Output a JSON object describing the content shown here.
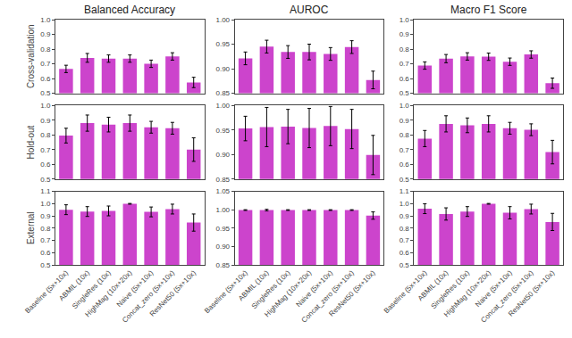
{
  "chart_data": [
    {
      "type": "bar",
      "title": "Balanced Accuracy",
      "ylabel": "Cross-validation",
      "categories": [
        "Baseline (5x+10x)",
        "ABMIL (10x)",
        "SingleRes (10x)",
        "HighMag (10x+20x)",
        "Naive (5x+10x)",
        "Concat_zero (5x+10x)",
        "ResNet50 (5x+10x)"
      ],
      "values": [
        0.665,
        0.74,
        0.735,
        0.735,
        0.7,
        0.75,
        0.573
      ],
      "errors": [
        0.025,
        0.03,
        0.025,
        0.025,
        0.025,
        0.025,
        0.035
      ],
      "color": "#CC44CC",
      "ylim": [
        0.5,
        1.0
      ],
      "yticks": [
        0.5,
        0.6,
        0.7,
        0.8,
        0.9,
        {
          "value": 1.0,
          "label": "1.0"
        }
      ],
      "grid": false,
      "tick_labels": "y"
    },
    {
      "type": "bar",
      "title": "AUROC",
      "categories": [
        "Baseline (5x+10x)",
        "ABMIL (10x)",
        "SingleRes (10x)",
        "HighMag (10x+20x)",
        "Naive (5x+10x)",
        "Concat_zero (5x+10x)",
        "ResNet50 (5x+10x)"
      ],
      "values": [
        0.921,
        0.945,
        0.934,
        0.934,
        0.93,
        0.944,
        0.877
      ],
      "errors": [
        0.013,
        0.013,
        0.013,
        0.016,
        0.013,
        0.013,
        0.018
      ],
      "color": "#CC44CC",
      "ylim": [
        0.85,
        1.0
      ],
      "yticks": [
        0.85,
        {
          "value": 0.9,
          "label": "0.90"
        },
        0.95,
        {
          "value": 1.0,
          "label": "1.00"
        }
      ],
      "grid": false,
      "tick_labels": "y"
    },
    {
      "type": "bar",
      "title": "Macro F1 Score",
      "categories": [
        "Baseline (5x+10x)",
        "ABMIL (10x)",
        "SingleRes (10x)",
        "HighMag (10x+20x)",
        "Naive (5x+10x)",
        "Concat_zero (5x+10x)",
        "ResNet50 (5x+10x)"
      ],
      "values": [
        0.688,
        0.735,
        0.75,
        0.748,
        0.714,
        0.763,
        0.568
      ],
      "errors": [
        0.025,
        0.028,
        0.025,
        0.025,
        0.025,
        0.025,
        0.035
      ],
      "color": "#CC44CC",
      "ylim": [
        0.5,
        1.0
      ],
      "yticks": [
        0.5,
        0.6,
        0.7,
        0.8,
        0.9,
        {
          "value": 1.0,
          "label": "1.0"
        }
      ],
      "grid": false,
      "tick_labels": "y"
    },
    {
      "type": "bar",
      "ylabel": "Hold-out",
      "categories": [
        "Baseline (5x+10x)",
        "ABMIL (10x)",
        "SingleRes (10x)",
        "HighMag (10x+20x)",
        "Naive (5x+10x)",
        "Concat_zero (5x+10x)",
        "ResNet50 (5x+10x)"
      ],
      "values": [
        0.795,
        0.88,
        0.87,
        0.88,
        0.852,
        0.845,
        0.7
      ],
      "errors": [
        0.05,
        0.055,
        0.05,
        0.055,
        0.04,
        0.04,
        0.08
      ],
      "color": "#CC44CC",
      "ylim": [
        0.5,
        1.0
      ],
      "yticks": [
        0.5,
        0.6,
        0.7,
        0.8,
        0.9,
        {
          "value": 1.0,
          "label": "1.0"
        }
      ],
      "grid": false,
      "tick_labels": "y"
    },
    {
      "type": "bar",
      "categories": [
        "Baseline (5x+10x)",
        "ABMIL (10x)",
        "SingleRes (10x)",
        "HighMag (10x+20x)",
        "Naive (5x+10x)",
        "Concat_zero (5x+10x)",
        "ResNet50 (5x+10x)"
      ],
      "values": [
        0.953,
        0.956,
        0.957,
        0.954,
        0.958,
        0.952,
        0.899
      ],
      "errors": [
        0.025,
        0.04,
        0.035,
        0.04,
        0.04,
        0.04,
        0.04
      ],
      "color": "#CC44CC",
      "ylim": [
        0.85,
        1.0
      ],
      "yticks": [
        0.85,
        {
          "value": 0.9,
          "label": "0.90"
        },
        0.95,
        {
          "value": 1.0,
          "label": "1.00"
        }
      ],
      "grid": false,
      "tick_labels": "y"
    },
    {
      "type": "bar",
      "categories": [
        "Baseline (5x+10x)",
        "ABMIL (10x)",
        "SingleRes (10x)",
        "HighMag (10x+20x)",
        "Naive (5x+10x)",
        "Concat_zero (5x+10x)",
        "ResNet50 (5x+10x)"
      ],
      "values": [
        0.775,
        0.875,
        0.865,
        0.875,
        0.845,
        0.835,
        0.683
      ],
      "errors": [
        0.055,
        0.055,
        0.05,
        0.055,
        0.04,
        0.04,
        0.08
      ],
      "color": "#CC44CC",
      "ylim": [
        0.5,
        1.0
      ],
      "yticks": [
        0.5,
        0.6,
        0.7,
        0.8,
        0.9,
        {
          "value": 1.0,
          "label": "1.0"
        }
      ],
      "grid": false,
      "tick_labels": "y"
    },
    {
      "type": "bar",
      "ylabel": "External",
      "categories": [
        "Baseline (5x+10x)",
        "ABMIL (10x)",
        "SingleRes (10x)",
        "HighMag (10x+20x)",
        "Naive (5x+10x)",
        "Concat_zero (5x+10x)",
        "ResNet50 (5x+10x)"
      ],
      "values": [
        0.95,
        0.935,
        0.94,
        0.998,
        0.932,
        0.955,
        0.845
      ],
      "errors": [
        0.04,
        0.04,
        0.04,
        0.003,
        0.04,
        0.04,
        0.07
      ],
      "color": "#CC44CC",
      "ylim": [
        0.5,
        1.1
      ],
      "yticks": [
        0.5,
        0.6,
        0.7,
        0.8,
        0.9,
        {
          "value": 1.0,
          "label": "1.0"
        },
        1.1
      ],
      "grid": false
    },
    {
      "type": "bar",
      "categories": [
        "Baseline (5x+10x)",
        "ABMIL (10x)",
        "SingleRes (10x)",
        "HighMag (10x+20x)",
        "Naive (5x+10x)",
        "Concat_zero (5x+10x)",
        "ResNet50 (5x+10x)"
      ],
      "values": [
        0.999,
        0.999,
        0.999,
        0.999,
        0.999,
        0.999,
        0.984
      ],
      "errors": [
        0.001,
        0.002,
        0.001,
        0.001,
        0.001,
        0.001,
        0.01
      ],
      "color": "#CC44CC",
      "ylim": [
        0.85,
        1.05
      ],
      "yticks": [
        0.85,
        {
          "value": 0.9,
          "label": "0.90"
        },
        0.95,
        {
          "value": 1.0,
          "label": "1.00"
        },
        1.05
      ],
      "grid": false
    },
    {
      "type": "bar",
      "categories": [
        "Baseline (5x+10x)",
        "ABMIL (10x)",
        "SingleRes (10x)",
        "HighMag (10x+20x)",
        "Naive (5x+10x)",
        "Concat_zero (5x+10x)",
        "ResNet50 (5x+10x)"
      ],
      "values": [
        0.958,
        0.915,
        0.935,
        0.998,
        0.925,
        0.955,
        0.85
      ],
      "errors": [
        0.04,
        0.05,
        0.04,
        0.003,
        0.05,
        0.04,
        0.07
      ],
      "color": "#CC44CC",
      "ylim": [
        0.5,
        1.1
      ],
      "yticks": [
        0.5,
        0.6,
        0.7,
        0.8,
        0.9,
        {
          "value": 1.0,
          "label": "1.0"
        },
        1.1
      ],
      "grid": false
    }
  ]
}
